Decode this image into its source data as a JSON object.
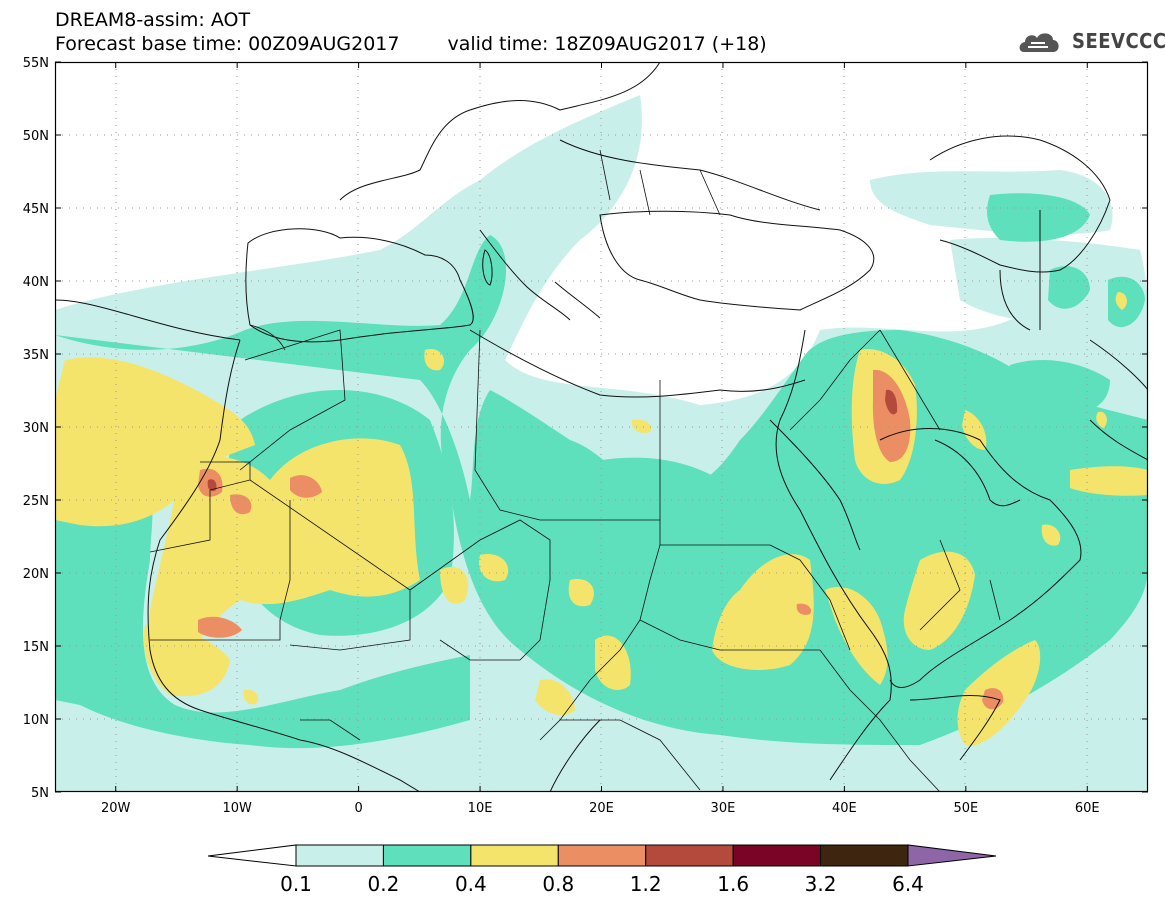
{
  "header": {
    "line1": "DREAM8-assim: AOT",
    "base_time": "Forecast base time: 00Z09AUG2017",
    "valid_time": "valid time: 18Z09AUG2017 (+18)"
  },
  "logo": {
    "text": "SEEVCCC",
    "icon": "cloud-icon"
  },
  "map": {
    "extent": {
      "lon": [
        -25,
        65
      ],
      "lat": [
        5,
        55
      ]
    },
    "lat_ticks": [
      {
        "lat": 55,
        "label": "55N"
      },
      {
        "lat": 50,
        "label": "50N"
      },
      {
        "lat": 45,
        "label": "45N"
      },
      {
        "lat": 40,
        "label": "40N"
      },
      {
        "lat": 35,
        "label": "35N"
      },
      {
        "lat": 30,
        "label": "30N"
      },
      {
        "lat": 25,
        "label": "25N"
      },
      {
        "lat": 20,
        "label": "20N"
      },
      {
        "lat": 15,
        "label": "15N"
      },
      {
        "lat": 10,
        "label": "10N"
      },
      {
        "lat": 5,
        "label": "5N"
      }
    ],
    "lon_ticks": [
      {
        "lon": -20,
        "label": "20W"
      },
      {
        "lon": -10,
        "label": "10W"
      },
      {
        "lon": 0,
        "label": "0"
      },
      {
        "lon": 10,
        "label": "10E"
      },
      {
        "lon": 20,
        "label": "20E"
      },
      {
        "lon": 30,
        "label": "30E"
      },
      {
        "lon": 40,
        "label": "40E"
      },
      {
        "lon": 50,
        "label": "50E"
      },
      {
        "lon": 60,
        "label": "60E"
      }
    ]
  },
  "colorbar": {
    "labels": [
      "0.1",
      "0.2",
      "0.4",
      "0.8",
      "1.2",
      "1.6",
      "3.2",
      "6.4"
    ],
    "colors": [
      "#ffffff",
      "#c9efea",
      "#5de0bb",
      "#f5e46c",
      "#eb8e64",
      "#b34a3c",
      "#7a0425",
      "#3d2510",
      "#8e66a8"
    ]
  },
  "colors": {
    "aot_0_1_0_2": "#c9efea",
    "aot_0_2_0_4": "#5de0bb",
    "aot_0_4_0_8": "#f5e46c",
    "aot_0_8_1_2": "#eb8e64",
    "aot_1_2_1_6": "#b34a3c"
  }
}
